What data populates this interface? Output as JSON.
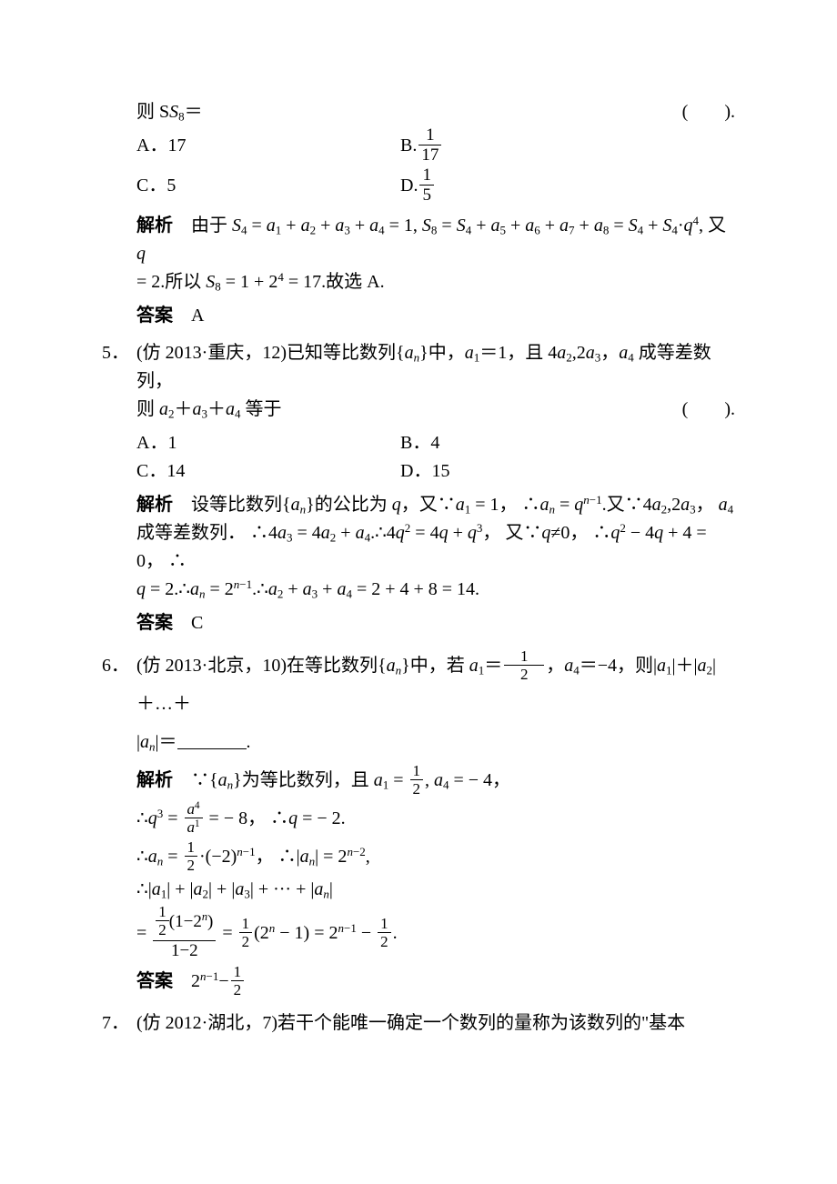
{
  "q4": {
    "stem_cont": "则 S",
    "stem_sub": "8",
    "stem_eq": "＝",
    "paren": "(　　).",
    "optA_l": "A．17",
    "optB_l": "B.",
    "optB_frac_n": "1",
    "optB_frac_d": "17",
    "optC_l": "C．5",
    "optD_l": "D.",
    "optD_frac_n": "1",
    "optD_frac_d": "5",
    "sol_label": "解析",
    "sol_l1_a": "　由于 ",
    "sol_l1_b": " = ",
    "sol_l1_c": " + ",
    "sol_l1_d": " = 1,  ",
    "sol_l1_e": " = ",
    "sol_l1_f": "·",
    "sol_l1_g": ",  又 ",
    "sol_l2_a": " = 2.所以 ",
    "sol_l2_b": " = 1 + 2",
    "sol_l2_c": " = 17.故选 A.",
    "ans_label": "答案",
    "ans": "　A"
  },
  "q5": {
    "num": "5．",
    "stem1_a": "(仿 2013·重庆，12)已知等比数列{",
    "stem1_b": "}中，",
    "stem1_c": "＝1，且 4",
    "stem1_d": "2",
    "stem1_e": "，",
    "stem1_f": " 成等差数列，",
    "stem2_a": "则 ",
    "stem2_b": "＋",
    "stem2_c": " 等于",
    "paren": "(　　).",
    "optA": "A．1",
    "optB": "B．4",
    "optC": "C．14",
    "optD": "D．15",
    "sol_label": "解析",
    "sol1_a": "　设等比数列{",
    "sol1_b": "}的公比为 ",
    "sol1_c": "，又∵",
    "sol1_d": " = 1，  ∴",
    "sol1_e": " = ",
    "sol1_f": ".又∵4",
    "sol1_g": "2",
    "sol1_h": "，  ",
    "sol2_a": "成等差数列．  ∴4",
    "sol2_b": " = 4",
    "sol2_c": " + ",
    "sol2_d": ".∴4",
    "sol2_e": " = 4",
    "sol2_f": " + ",
    "sol2_g": "，  又∵",
    "sol2_h": "≠0，  ∴",
    "sol2_i": " − 4",
    "sol2_j": " + 4 = 0，  ∴",
    "sol3_a": " = 2.∴",
    "sol3_b": " = 2",
    "sol3_c": ".∴",
    "sol3_d": " + ",
    "sol3_e": " = 2 + 4 + 8 = 14.",
    "ans_label": "答案",
    "ans": "　C"
  },
  "q6": {
    "num": "6．",
    "stem1_a": "(仿 2013·北京，10)在等比数列{",
    "stem1_b": "}中，若 ",
    "stem1_c": "＝",
    "frac_half_n": "1",
    "frac_half_d": "2",
    "stem1_d": "，",
    "stem1_e": "＝−4，则|",
    "stem1_f": "|＋|",
    "stem1_g": "|＋…＋",
    "stem2_a": "|",
    "stem2_b": "|＝",
    "stem2_c": ".",
    "sol_label": "解析",
    "sol1_a": "　∵{",
    "sol1_b": "}为等比数列，且 ",
    "sol1_c": " = ",
    "sol1_d": ",  ",
    "sol1_e": " = − 4，",
    "sol2_a": "∴",
    "sol2_b": " = ",
    "sol2_fr_n": "a",
    "sol2_fr_d": "a",
    "sol2_c": " = − 8，  ∴",
    "sol2_d": " = − 2.",
    "sol3_a": "∴",
    "sol3_b": " = ",
    "sol3_c": "·(−2)",
    "sol3_d": "，  ∴|",
    "sol3_e": "| = 2",
    "sol3_f": ",",
    "sol4_a": "∴|",
    "sol4_b": "| + |",
    "sol4_c": "| + |",
    "sol4_d": "| + ··· + |",
    "sol4_e": "|",
    "sol5_a": "= ",
    "sol5_frac_top_a": "(1−2",
    "sol5_frac_top_b": ")",
    "sol5_frac_bot": "1−2",
    "sol5_b": " = ",
    "sol5_c": "(2",
    "sol5_d": " − 1) = 2",
    "sol5_e": " − ",
    "sol5_f": ".",
    "ans_label": "答案",
    "ans_a": "　2",
    "ans_b": "−"
  },
  "q7": {
    "num": "7．",
    "stem_a": "(仿 2012·湖北，7)若干个能唯一确定一个数列的量称为该数列的\"基本"
  }
}
